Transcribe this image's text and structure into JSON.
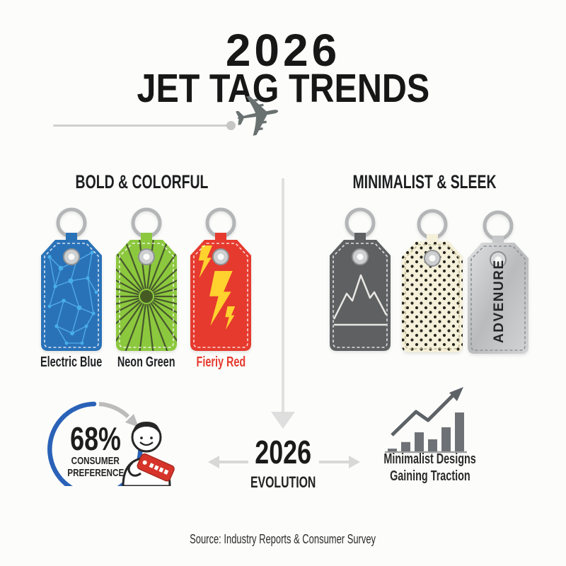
{
  "title": {
    "year": "2026",
    "subtitle": "JET TAG TRENDS"
  },
  "icons": {
    "airplane": "✈",
    "airplane_color": "#687070",
    "trail": "line-with-dot",
    "arrows_color": "#d8d8d8"
  },
  "sections": {
    "left": {
      "heading": "BOLD & COLORFUL",
      "tags": [
        {
          "label": "Electric Blue",
          "pattern": "circuit-network",
          "color": "#2a72b8",
          "pattern_color": "#55b0e8"
        },
        {
          "label": "Neon Green",
          "pattern": "sunburst-rays",
          "color": "#8cc83e",
          "pattern_color": "#46582c"
        },
        {
          "label": "Fieriy Red",
          "pattern": "lightning-bolts",
          "color": "#e63a2e",
          "pattern_color": "#ffd22e",
          "label_color": "#e63a2e"
        }
      ]
    },
    "right": {
      "heading": "MINIMALIST & SLEEK",
      "tags": [
        {
          "label": "",
          "pattern": "mountain-outline",
          "color": "#5e6062",
          "pattern_color": "#e9e7e3"
        },
        {
          "label": "",
          "pattern": "polka-dots",
          "color": "#f5f0da",
          "pattern_color": "#26261f"
        },
        {
          "label": "",
          "pattern": "brushed-metal",
          "color": "#c6c8ca",
          "text": "ADVENURE",
          "text_color": "#252525"
        }
      ]
    }
  },
  "stats": {
    "consumer_preference": {
      "value": "68%",
      "line1": "CONSUMER",
      "line2": "PREFERENCE",
      "accent": "#2a62b8"
    },
    "evolution": {
      "year": "2026",
      "label": "EVOLUTION"
    },
    "traction": {
      "line1": "Minimalist Designs",
      "line2": "Gaining Traction",
      "bar_color": "#6e7276"
    }
  },
  "footer": {
    "source": "Source: Industry Reports & Consumer Survey"
  },
  "chart_data": [
    {
      "type": "bar",
      "title": "Minimalist Designs Gaining Traction",
      "categories": [
        "",
        "",
        "",
        "",
        "",
        ""
      ],
      "values": [
        7,
        24,
        49,
        31,
        62,
        100
      ],
      "ylim": [
        0,
        100
      ],
      "xlabel": "",
      "ylabel": "",
      "grid": false,
      "legend": "none",
      "bar_color": "#6e7276",
      "annotation": "upward zigzag trend arrow"
    },
    {
      "type": "pie",
      "title": "68% CONSUMER PREFERENCE",
      "categories": [
        "Consumer preference"
      ],
      "values": [
        68
      ],
      "style": "open ring with arrow pointing to consumer icon",
      "ring_color": "#2a62b8"
    }
  ]
}
